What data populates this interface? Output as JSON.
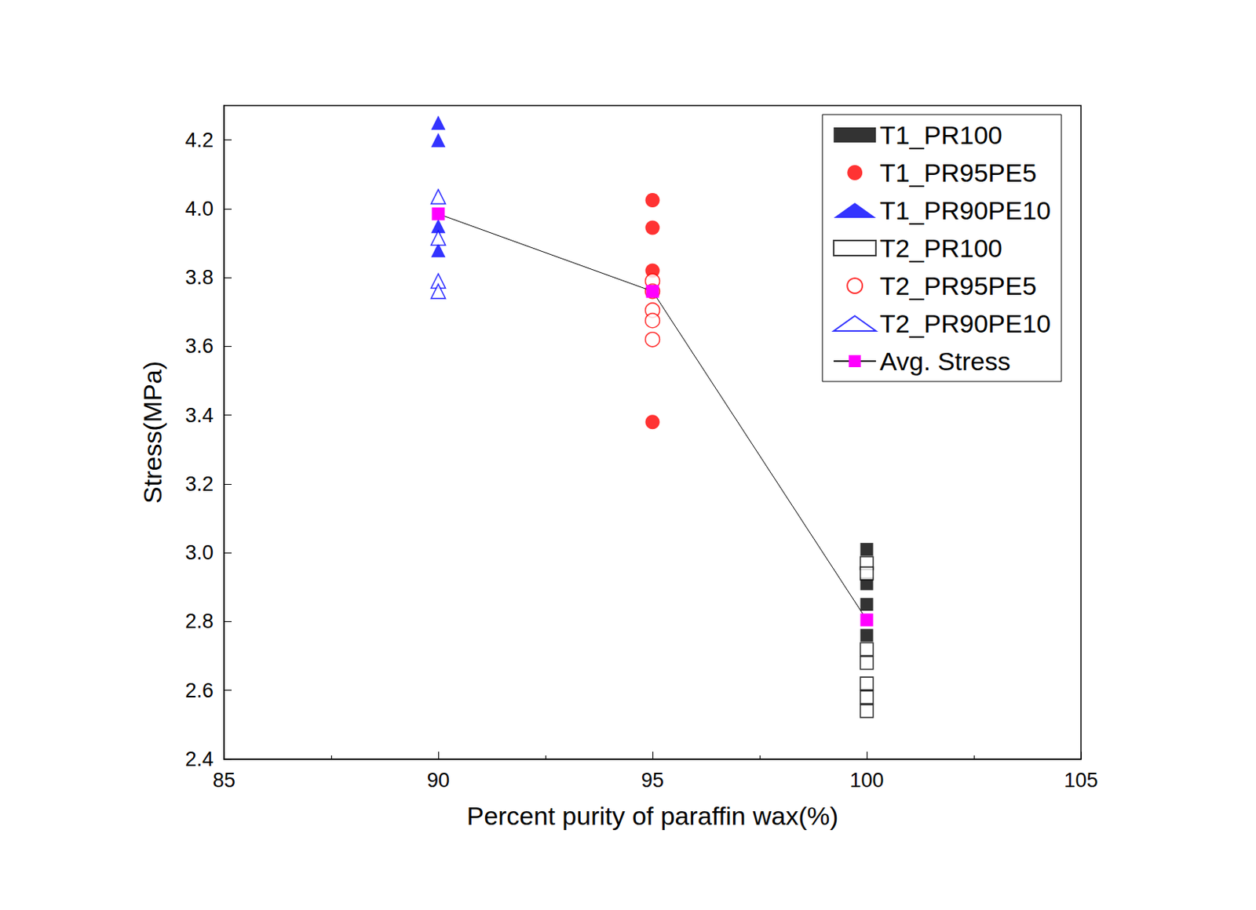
{
  "chart_data": {
    "type": "scatter",
    "x_label": "Percent purity of paraffin wax(%)",
    "y_label": "Stress(MPa)",
    "xlim": [
      85,
      105
    ],
    "xticks": [
      85,
      90,
      95,
      100,
      105
    ],
    "ylim": [
      2.4,
      4.3
    ],
    "yticks": [
      2.4,
      2.6,
      2.8,
      {
        "value": 3.0,
        "label": "3.0"
      },
      3.2,
      3.4,
      3.6,
      3.8,
      {
        "value": 4.0,
        "label": "4.0"
      },
      4.2
    ],
    "grid": false,
    "legend": "upper right",
    "series": [
      {
        "name": "T1_PR100",
        "type": "scatter",
        "marker": "square",
        "color": "#000000",
        "x": [
          100,
          100,
          100,
          100
        ],
        "values": [
          3.01,
          2.91,
          2.85,
          2.76
        ]
      },
      {
        "name": "T1_PR95PE5",
        "type": "scatter",
        "marker": "circle",
        "color": "#ff0000",
        "x": [
          95,
          95,
          95,
          95,
          95
        ],
        "values": [
          4.025,
          3.945,
          3.82,
          3.76,
          3.38
        ]
      },
      {
        "name": "T1_PR90PE10",
        "type": "scatter",
        "marker": "triangle",
        "color": "#0000ff",
        "x": [
          90,
          90,
          90,
          90
        ],
        "values": [
          4.25,
          4.2,
          3.95,
          3.88
        ]
      },
      {
        "name": "T2_PR100",
        "type": "scatter",
        "marker": "open_square",
        "color": "#000000",
        "x": [
          100,
          100,
          100,
          100,
          100,
          100,
          100
        ],
        "values": [
          2.97,
          2.94,
          2.72,
          2.68,
          2.62,
          2.58,
          2.54
        ]
      },
      {
        "name": "T2_PR95PE5",
        "type": "scatter",
        "marker": "open_circle",
        "color": "#ff0000",
        "x": [
          95,
          95,
          95,
          95,
          95
        ],
        "values": [
          3.79,
          3.76,
          3.705,
          3.675,
          3.62
        ]
      },
      {
        "name": "T2_PR90PE10",
        "type": "scatter",
        "marker": "open_triangle",
        "color": "#0000ff",
        "x": [
          90,
          90,
          90,
          90
        ],
        "values": [
          4.035,
          3.915,
          3.79,
          3.76
        ]
      },
      {
        "name": "Avg. Stress",
        "type": "line",
        "marker": "square",
        "line_style": "solid",
        "color": "#ff00ff",
        "x": [
          90,
          95,
          100
        ],
        "values": [
          3.985,
          3.76,
          2.805
        ]
      }
    ]
  }
}
